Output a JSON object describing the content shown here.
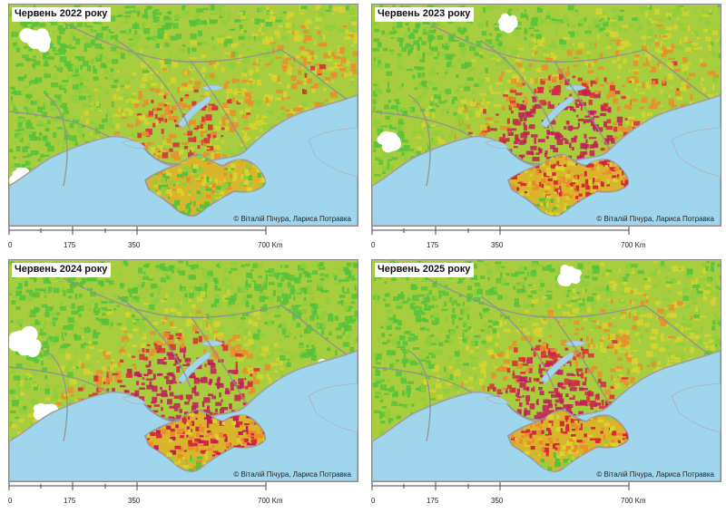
{
  "panels": [
    {
      "title": "Червень 2022 року",
      "copyright": "© Віталій Пічура, Лариса Потравка"
    },
    {
      "title": "Червень 2023 року",
      "copyright": "© Віталій Пічура, Лариса Потравка"
    },
    {
      "title": "Червень 2024 року",
      "copyright": "© Віталій Пічура, Лариса Потравка"
    },
    {
      "title": "Червень 2025 року",
      "copyright": "© Віталій Пічура, Лариса Потравка"
    }
  ],
  "scale_bar": {
    "ticks": [
      "0",
      "175",
      "350",
      "700 Km"
    ]
  },
  "colors": {
    "sea": "#9fd6ee",
    "vegetation_green": "#55c23a",
    "vegetation_yellow": "#d8d42e",
    "stress_orange": "#ec8c2a",
    "stress_red": "#d62a3a",
    "stress_magenta": "#c21c5a",
    "no_data": "#ffffff",
    "border": "#909090"
  }
}
